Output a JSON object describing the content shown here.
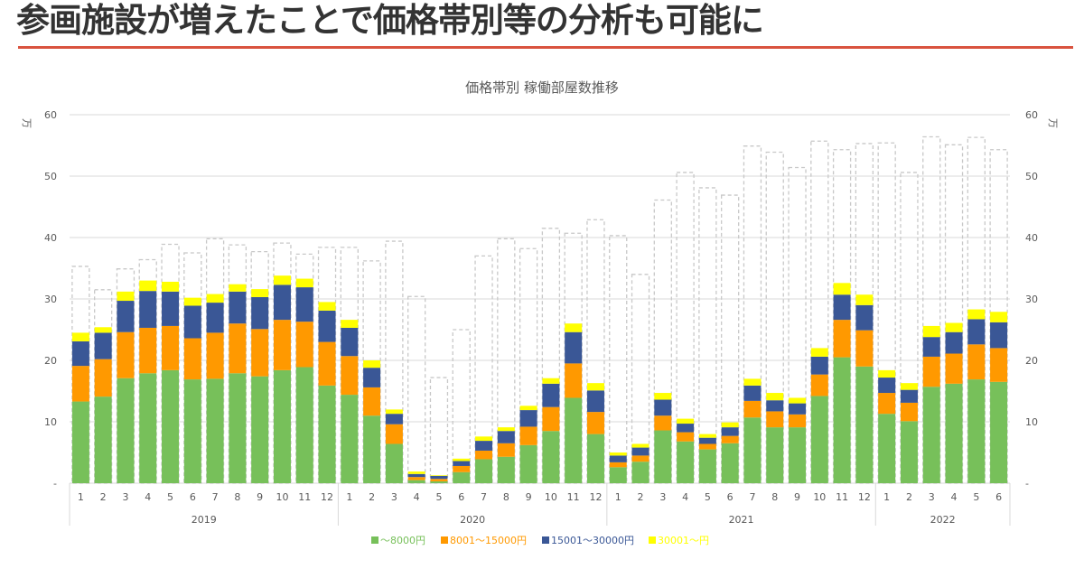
{
  "headline": "参画施設が増えたことで価格帯別等の分析も可能に",
  "chart_data": {
    "type": "bar",
    "stacked": true,
    "title": "価格帯別  稼働部屋数推移",
    "ylabel": "万",
    "y2label": "万",
    "ylim": [
      0,
      60
    ],
    "yticks": [
      "-",
      "10",
      "20",
      "30",
      "40",
      "50",
      "60"
    ],
    "grid": true,
    "legend_position": "bottom",
    "years": [
      {
        "label": "2019",
        "months": 12
      },
      {
        "label": "2020",
        "months": 12
      },
      {
        "label": "2021",
        "months": 12
      },
      {
        "label": "2022",
        "months": 6
      }
    ],
    "categories": [
      "1",
      "2",
      "3",
      "4",
      "5",
      "6",
      "7",
      "8",
      "9",
      "10",
      "11",
      "12",
      "1",
      "2",
      "3",
      "4",
      "5",
      "6",
      "7",
      "8",
      "9",
      "10",
      "11",
      "12",
      "1",
      "2",
      "3",
      "4",
      "5",
      "6",
      "7",
      "8",
      "9",
      "10",
      "11",
      "12",
      "1",
      "2",
      "3",
      "4",
      "5",
      "6"
    ],
    "series": [
      {
        "name": "～8000円",
        "color": "#77c05a",
        "values": [
          13.3,
          14.1,
          17.1,
          17.9,
          18.4,
          16.9,
          17.0,
          17.9,
          17.4,
          18.4,
          18.9,
          15.9,
          14.4,
          11.0,
          6.4,
          0.5,
          0.3,
          1.8,
          3.9,
          4.3,
          6.2,
          8.5,
          13.9,
          8.0,
          2.6,
          3.5,
          8.6,
          6.8,
          5.5,
          6.5,
          10.7,
          9.1,
          9.1,
          14.2,
          20.5,
          19.0,
          11.3,
          10.1,
          15.7,
          16.2,
          16.9,
          16.5
        ]
      },
      {
        "name": "8001～15000円",
        "color": "#ff9900",
        "values": [
          5.8,
          6.1,
          7.5,
          7.4,
          7.2,
          6.7,
          7.5,
          8.1,
          7.7,
          8.2,
          7.4,
          7.1,
          6.3,
          4.6,
          3.2,
          0.5,
          0.4,
          1.0,
          1.4,
          2.2,
          3.0,
          3.9,
          5.6,
          3.6,
          0.8,
          1.0,
          2.4,
          1.5,
          0.9,
          1.2,
          2.7,
          2.6,
          2.1,
          3.5,
          6.1,
          5.9,
          3.4,
          3.0,
          4.9,
          4.9,
          5.7,
          5.5
        ]
      },
      {
        "name": "15001～30000円",
        "color": "#3a5796",
        "values": [
          4.0,
          4.3,
          5.1,
          6.0,
          5.6,
          5.3,
          4.9,
          5.2,
          5.2,
          5.7,
          5.6,
          5.1,
          4.6,
          3.2,
          1.7,
          0.5,
          0.5,
          0.8,
          1.6,
          2.0,
          2.7,
          3.8,
          5.1,
          3.5,
          1.1,
          1.3,
          2.6,
          1.4,
          1.0,
          1.4,
          2.5,
          1.8,
          1.8,
          2.9,
          4.1,
          4.1,
          2.5,
          2.1,
          3.2,
          3.5,
          4.1,
          4.2
        ]
      },
      {
        "name": "30001～円",
        "color": "#ffff00",
        "values": [
          1.4,
          0.9,
          1.5,
          1.7,
          1.6,
          1.3,
          1.4,
          1.2,
          1.3,
          1.5,
          1.4,
          1.4,
          1.3,
          1.2,
          0.7,
          0.4,
          0.1,
          0.4,
          0.7,
          0.6,
          0.7,
          0.9,
          1.4,
          1.2,
          0.5,
          0.6,
          1.1,
          0.8,
          0.6,
          0.8,
          1.1,
          1.2,
          0.9,
          1.4,
          1.9,
          1.7,
          1.2,
          1.1,
          1.8,
          1.5,
          1.6,
          1.7
        ]
      }
    ],
    "capacity_total": {
      "style": "dashed-outline",
      "color": "#c8c8c8",
      "values": [
        35.3,
        31.5,
        34.9,
        36.4,
        38.9,
        37.5,
        39.8,
        38.8,
        37.7,
        39.1,
        37.3,
        38.4,
        38.4,
        36.2,
        39.4,
        30.4,
        17.2,
        25.0,
        37.0,
        39.8,
        38.2,
        41.5,
        40.7,
        42.9,
        40.3,
        34.0,
        46.1,
        50.6,
        48.1,
        46.9,
        54.9,
        53.9,
        51.4,
        55.7,
        54.3,
        55.3,
        55.4,
        50.6,
        56.4,
        55.1,
        56.3,
        54.3
      ]
    }
  }
}
